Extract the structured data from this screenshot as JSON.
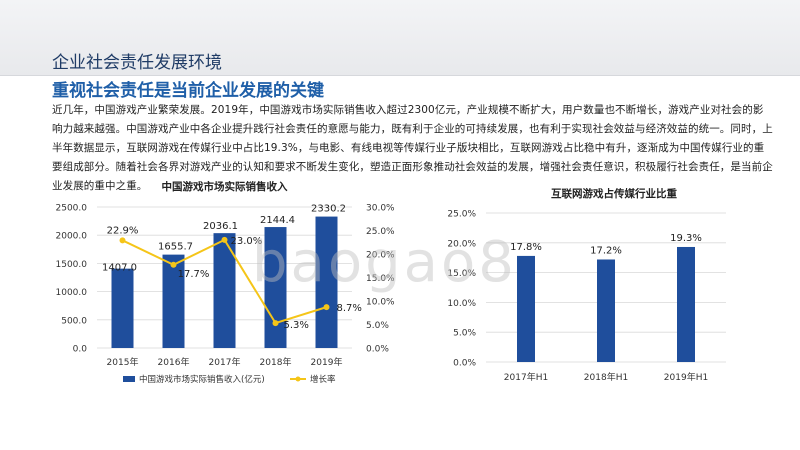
{
  "slide": {
    "section_title": "企业社会责任发展环境",
    "sub_title": "重视社会责任是当前企业发展的关键",
    "body": "近几年，中国游戏产业繁荣发展。2019年，中国游戏市场实际销售收入超过2300亿元，产业规模不断扩大，用户数量也不断增长，游戏产业对社会的影响力越来越强。中国游戏产业中各企业提升践行社会责任的意愿与能力，既有利于企业的可持续发展，也有利于实现社会效益与经济效益的统一。同时，上半年数据显示，互联网游戏在传媒行业中占比19.3%，与电影、有线电视等传媒行业子版块相比，互联网游戏占比稳中有升，逐渐成为中国传媒行业的重要组成部分。随着社会各界对游戏产业的认知和要求不断发生变化，塑造正面形象推动社会效益的发展，增强社会责任意识，积极履行社会责任，是当前企业发展的重中之重。",
    "watermark": "baogao8"
  },
  "chart_data": [
    {
      "type": "bar",
      "title": "中国游戏市场实际销售收入",
      "categories": [
        "2015年",
        "2016年",
        "2017年",
        "2018年",
        "2019年"
      ],
      "series": [
        {
          "name": "中国游戏市场实际销售收入(亿元)",
          "type": "bar",
          "axis": "left",
          "values": [
            1407.0,
            1655.7,
            2036.1,
            2144.4,
            2330.2
          ],
          "labels": [
            "1407.0",
            "1655.7",
            "2036.1",
            "2144.4",
            "2330.2"
          ]
        },
        {
          "name": "增长率",
          "type": "line",
          "axis": "right",
          "values": [
            22.9,
            17.7,
            23.0,
            5.3,
            8.7
          ],
          "labels": [
            "22.9%",
            "17.7%",
            "23.0%",
            "5.3%",
            "8.7%"
          ]
        }
      ],
      "y_left": {
        "min": 0,
        "max": 2500,
        "ticks": [
          "0.0",
          "500.0",
          "1000.0",
          "1500.0",
          "2000.0",
          "2500.0"
        ]
      },
      "y_right": {
        "min": 0,
        "max": 30,
        "ticks": [
          "0.0%",
          "5.0%",
          "10.0%",
          "15.0%",
          "20.0%",
          "25.0%",
          "30.0%"
        ]
      },
      "grid": true,
      "legend": "bottom",
      "colors": {
        "bar": "#1f4e9c",
        "line": "#f5c518"
      }
    },
    {
      "type": "bar",
      "title": "互联网游戏占传媒行业比重",
      "categories": [
        "2017年H1",
        "2018年H1",
        "2019年H1"
      ],
      "series": [
        {
          "name": "",
          "values": [
            17.8,
            17.2,
            19.3
          ],
          "labels": [
            "17.8%",
            "17.2%",
            "19.3%"
          ]
        }
      ],
      "y": {
        "min": 0,
        "max": 25,
        "ticks": [
          "0.0%",
          "5.0%",
          "10.0%",
          "15.0%",
          "20.0%",
          "25.0%"
        ]
      },
      "grid": true,
      "colors": {
        "bar": "#1f4e9c"
      }
    }
  ]
}
